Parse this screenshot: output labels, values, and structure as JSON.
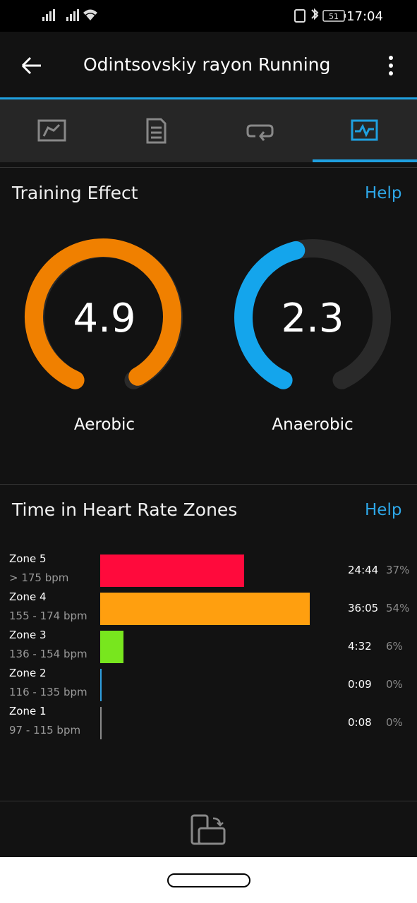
{
  "status_bar": {
    "battery": "51",
    "time": "17:04"
  },
  "header": {
    "title": "Odintsovskiy rayon Running"
  },
  "training_effect": {
    "title": "Training Effect",
    "help": "Help",
    "gauges": [
      {
        "value": "4.9",
        "label": "Aerobic"
      },
      {
        "value": "2.3",
        "label": "Anaerobic"
      }
    ]
  },
  "heart_rate_zones": {
    "title": "Time in Heart Rate Zones",
    "help": "Help",
    "zones": [
      "Zone 5",
      "Zone 4",
      "Zone 3",
      "Zone 2",
      "Zone 1"
    ],
    "ranges": [
      "> 175 bpm",
      "155 - 174 bpm",
      "136 - 154 bpm",
      "116 - 135 bpm",
      "97 - 115 bpm"
    ],
    "times": [
      "24:44",
      "36:05",
      "4:32",
      "0:09",
      "0:08"
    ],
    "values": [
      37,
      54,
      6,
      0,
      0
    ],
    "value_labels": [
      "37%",
      "54%",
      "6%",
      "0%",
      "0%"
    ],
    "colors": [
      "#ff0a3c",
      "#ff9f0f",
      "#78e61e",
      "#2f9fe0",
      "#8a8a8a"
    ]
  }
}
